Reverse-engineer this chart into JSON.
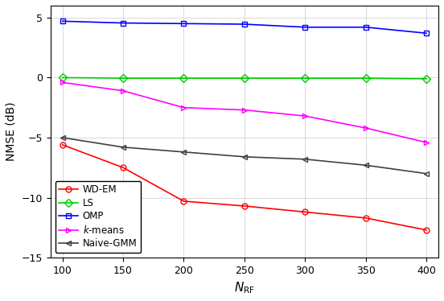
{
  "x": [
    100,
    150,
    200,
    250,
    300,
    350,
    400
  ],
  "WD_EM": [
    -5.6,
    -7.5,
    -10.3,
    -10.7,
    -11.2,
    -11.7,
    -12.7
  ],
  "LS": [
    0.0,
    -0.05,
    -0.05,
    -0.05,
    -0.05,
    -0.05,
    -0.1
  ],
  "OMP": [
    4.7,
    4.55,
    4.5,
    4.45,
    4.2,
    4.2,
    3.7
  ],
  "k_means": [
    -0.4,
    -1.1,
    -2.5,
    -2.7,
    -3.2,
    -4.2,
    -5.4
  ],
  "Naive_GMM": [
    -5.0,
    -5.8,
    -6.2,
    -6.6,
    -6.8,
    -7.3,
    -8.0
  ],
  "colors": {
    "WD_EM": "#ff0000",
    "LS": "#00cc00",
    "OMP": "#0000ff",
    "k_means": "#ff00ff",
    "Naive_GMM": "#404040"
  },
  "xlabel": "$N_{\\mathrm{RF}}$",
  "ylabel": "NMSE (dB)",
  "xlim": [
    90,
    410
  ],
  "ylim": [
    -15,
    6
  ],
  "yticks": [
    -15,
    -10,
    -5,
    0,
    5
  ],
  "xticks": [
    100,
    150,
    200,
    250,
    300,
    350,
    400
  ],
  "legend_labels": [
    "WD-EM",
    "LS",
    "OMP",
    "$k$-means",
    "Naive-GMM"
  ],
  "grid": true
}
